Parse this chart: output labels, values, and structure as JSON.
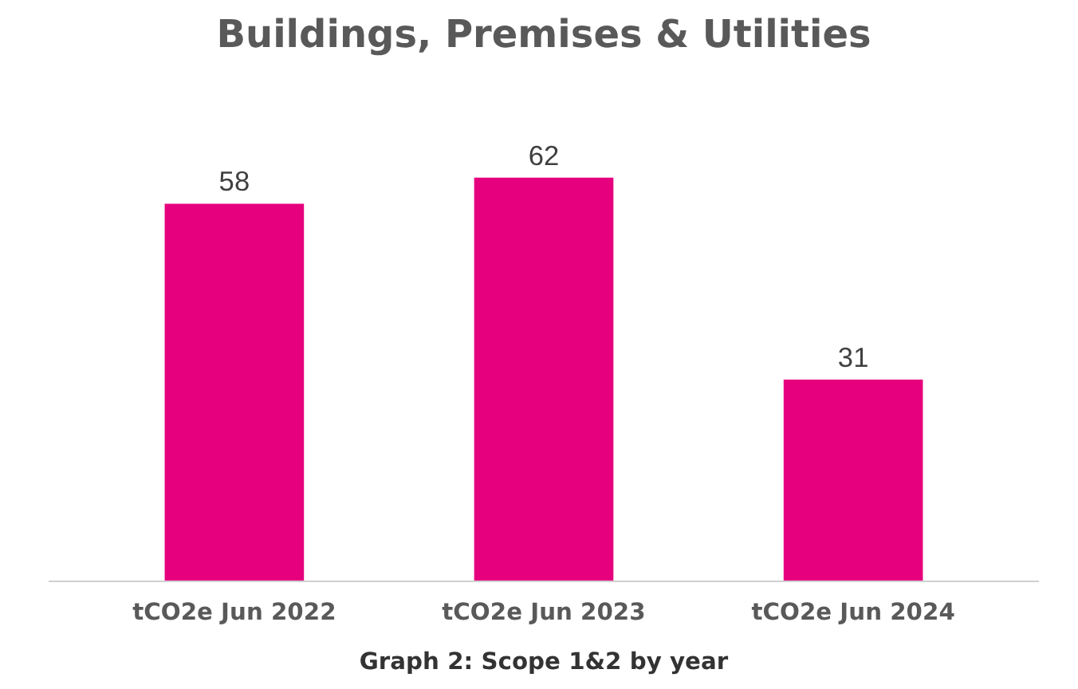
{
  "chart_data": {
    "type": "bar",
    "title": "Buildings, Premises & Utilities",
    "categories": [
      "tCO2e Jun 2022",
      "tCO2e Jun 2023",
      "tCO2e Jun 2024"
    ],
    "values": [
      58,
      62,
      31
    ],
    "color": "#e6007e",
    "data_labels": true,
    "grid": false,
    "annotations": [
      "Graph 2: Scope 1&2 by year"
    ]
  }
}
